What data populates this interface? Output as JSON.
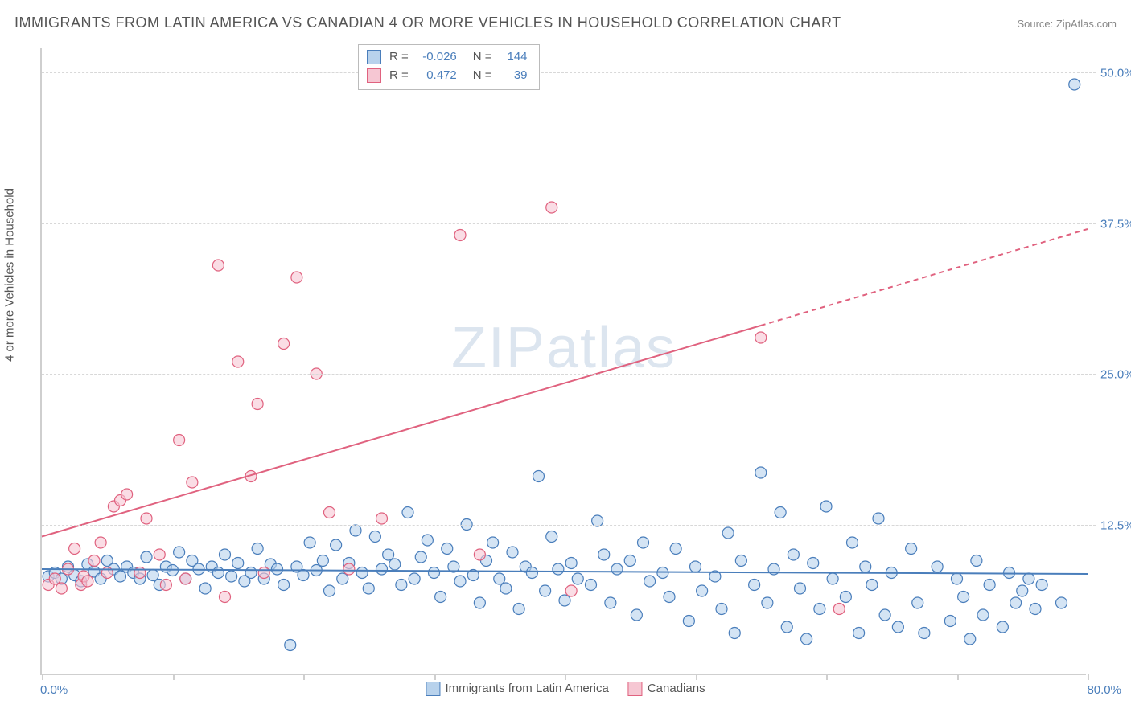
{
  "title": "IMMIGRANTS FROM LATIN AMERICA VS CANADIAN 4 OR MORE VEHICLES IN HOUSEHOLD CORRELATION CHART",
  "source": "Source: ZipAtlas.com",
  "watermark_a": "ZIP",
  "watermark_b": "atlas",
  "y_axis_label": "4 or more Vehicles in Household",
  "xlim": [
    0,
    80
  ],
  "ylim": [
    0,
    52
  ],
  "x_label_min": "0.0%",
  "x_label_max": "80.0%",
  "y_ticks": [
    {
      "v": 12.5,
      "label": "12.5%"
    },
    {
      "v": 25.0,
      "label": "25.0%"
    },
    {
      "v": 37.5,
      "label": "37.5%"
    },
    {
      "v": 50.0,
      "label": "50.0%"
    }
  ],
  "x_tick_positions": [
    0,
    10,
    20,
    30,
    40,
    50,
    60,
    70,
    80
  ],
  "grid_color": "#d8d8d8",
  "background_color": "#ffffff",
  "series": [
    {
      "name": "Immigrants from Latin America",
      "fill": "#b8d2ec",
      "stroke": "#4a7ebb",
      "marker_radius": 7,
      "line_width": 2,
      "R": "-0.026",
      "N": "144",
      "trend": {
        "x1": 0,
        "y1": 8.8,
        "x2": 80,
        "y2": 8.4
      },
      "points": [
        [
          0.5,
          8.2
        ],
        [
          1.0,
          8.5
        ],
        [
          1.5,
          8.0
        ],
        [
          2.0,
          9.0
        ],
        [
          2.5,
          8.3
        ],
        [
          3.0,
          7.8
        ],
        [
          3.5,
          9.2
        ],
        [
          4.0,
          8.6
        ],
        [
          4.5,
          8.0
        ],
        [
          5.0,
          9.5
        ],
        [
          5.5,
          8.8
        ],
        [
          6.0,
          8.2
        ],
        [
          6.5,
          9.0
        ],
        [
          7.0,
          8.5
        ],
        [
          7.5,
          8.0
        ],
        [
          8.0,
          9.8
        ],
        [
          8.5,
          8.3
        ],
        [
          9.0,
          7.5
        ],
        [
          9.5,
          9.0
        ],
        [
          10.0,
          8.7
        ],
        [
          10.5,
          10.2
        ],
        [
          11.0,
          8.0
        ],
        [
          11.5,
          9.5
        ],
        [
          12.0,
          8.8
        ],
        [
          12.5,
          7.2
        ],
        [
          13.0,
          9.0
        ],
        [
          13.5,
          8.5
        ],
        [
          14.0,
          10.0
        ],
        [
          14.5,
          8.2
        ],
        [
          15.0,
          9.3
        ],
        [
          15.5,
          7.8
        ],
        [
          16.0,
          8.5
        ],
        [
          16.5,
          10.5
        ],
        [
          17.0,
          8.0
        ],
        [
          17.5,
          9.2
        ],
        [
          18.0,
          8.8
        ],
        [
          18.5,
          7.5
        ],
        [
          19.0,
          2.5
        ],
        [
          19.5,
          9.0
        ],
        [
          20.0,
          8.3
        ],
        [
          20.5,
          11.0
        ],
        [
          21.0,
          8.7
        ],
        [
          21.5,
          9.5
        ],
        [
          22.0,
          7.0
        ],
        [
          22.5,
          10.8
        ],
        [
          23.0,
          8.0
        ],
        [
          23.5,
          9.3
        ],
        [
          24.0,
          12.0
        ],
        [
          24.5,
          8.5
        ],
        [
          25.0,
          7.2
        ],
        [
          25.5,
          11.5
        ],
        [
          26.0,
          8.8
        ],
        [
          26.5,
          10.0
        ],
        [
          27.0,
          9.2
        ],
        [
          27.5,
          7.5
        ],
        [
          28.0,
          13.5
        ],
        [
          28.5,
          8.0
        ],
        [
          29.0,
          9.8
        ],
        [
          29.5,
          11.2
        ],
        [
          30.0,
          8.5
        ],
        [
          30.5,
          6.5
        ],
        [
          31.0,
          10.5
        ],
        [
          31.5,
          9.0
        ],
        [
          32.0,
          7.8
        ],
        [
          32.5,
          12.5
        ],
        [
          33.0,
          8.3
        ],
        [
          33.5,
          6.0
        ],
        [
          34.0,
          9.5
        ],
        [
          34.5,
          11.0
        ],
        [
          35.0,
          8.0
        ],
        [
          35.5,
          7.2
        ],
        [
          36.0,
          10.2
        ],
        [
          36.5,
          5.5
        ],
        [
          37.0,
          9.0
        ],
        [
          37.5,
          8.5
        ],
        [
          38.0,
          16.5
        ],
        [
          38.5,
          7.0
        ],
        [
          39.0,
          11.5
        ],
        [
          39.5,
          8.8
        ],
        [
          40.0,
          6.2
        ],
        [
          40.5,
          9.3
        ],
        [
          41.0,
          8.0
        ],
        [
          42.0,
          7.5
        ],
        [
          42.5,
          12.8
        ],
        [
          43.0,
          10.0
        ],
        [
          43.5,
          6.0
        ],
        [
          44.0,
          8.8
        ],
        [
          45.0,
          9.5
        ],
        [
          45.5,
          5.0
        ],
        [
          46.0,
          11.0
        ],
        [
          46.5,
          7.8
        ],
        [
          47.5,
          8.5
        ],
        [
          48.0,
          6.5
        ],
        [
          48.5,
          10.5
        ],
        [
          49.5,
          4.5
        ],
        [
          50.0,
          9.0
        ],
        [
          50.5,
          7.0
        ],
        [
          51.5,
          8.2
        ],
        [
          52.0,
          5.5
        ],
        [
          52.5,
          11.8
        ],
        [
          53.0,
          3.5
        ],
        [
          53.5,
          9.5
        ],
        [
          54.5,
          7.5
        ],
        [
          55.0,
          16.8
        ],
        [
          55.5,
          6.0
        ],
        [
          56.0,
          8.8
        ],
        [
          56.5,
          13.5
        ],
        [
          57.0,
          4.0
        ],
        [
          57.5,
          10.0
        ],
        [
          58.0,
          7.2
        ],
        [
          58.5,
          3.0
        ],
        [
          59.0,
          9.3
        ],
        [
          59.5,
          5.5
        ],
        [
          60.0,
          14.0
        ],
        [
          60.5,
          8.0
        ],
        [
          61.5,
          6.5
        ],
        [
          62.0,
          11.0
        ],
        [
          62.5,
          3.5
        ],
        [
          63.0,
          9.0
        ],
        [
          63.5,
          7.5
        ],
        [
          64.0,
          13.0
        ],
        [
          64.5,
          5.0
        ],
        [
          65.0,
          8.5
        ],
        [
          65.5,
          4.0
        ],
        [
          66.5,
          10.5
        ],
        [
          67.0,
          6.0
        ],
        [
          67.5,
          3.5
        ],
        [
          68.5,
          9.0
        ],
        [
          69.5,
          4.5
        ],
        [
          70.0,
          8.0
        ],
        [
          70.5,
          6.5
        ],
        [
          71.0,
          3.0
        ],
        [
          71.5,
          9.5
        ],
        [
          72.0,
          5.0
        ],
        [
          72.5,
          7.5
        ],
        [
          73.5,
          4.0
        ],
        [
          74.0,
          8.5
        ],
        [
          74.5,
          6.0
        ],
        [
          75.0,
          7.0
        ],
        [
          75.5,
          8.0
        ],
        [
          76.0,
          5.5
        ],
        [
          76.5,
          7.5
        ],
        [
          78.0,
          6.0
        ],
        [
          79.0,
          49.0
        ]
      ]
    },
    {
      "name": "Canadians",
      "fill": "#f6c7d3",
      "stroke": "#e0627f",
      "marker_radius": 7,
      "line_width": 2,
      "R": "0.472",
      "N": "39",
      "trend": {
        "x1": 0,
        "y1": 11.5,
        "x2": 55,
        "y2": 29.0
      },
      "trend_ext": {
        "x1": 55,
        "y1": 29.0,
        "x2": 80,
        "y2": 37.0
      },
      "points": [
        [
          0.5,
          7.5
        ],
        [
          1.0,
          8.0
        ],
        [
          1.5,
          7.2
        ],
        [
          2.0,
          8.8
        ],
        [
          2.5,
          10.5
        ],
        [
          3.0,
          7.5
        ],
        [
          3.2,
          8.2
        ],
        [
          3.5,
          7.8
        ],
        [
          4.0,
          9.5
        ],
        [
          4.5,
          11.0
        ],
        [
          5.0,
          8.5
        ],
        [
          5.5,
          14.0
        ],
        [
          6.0,
          14.5
        ],
        [
          6.5,
          15.0
        ],
        [
          7.5,
          8.5
        ],
        [
          8.0,
          13.0
        ],
        [
          9.0,
          10.0
        ],
        [
          9.5,
          7.5
        ],
        [
          10.5,
          19.5
        ],
        [
          11.0,
          8.0
        ],
        [
          11.5,
          16.0
        ],
        [
          13.5,
          34.0
        ],
        [
          14.0,
          6.5
        ],
        [
          15.0,
          26.0
        ],
        [
          16.0,
          16.5
        ],
        [
          16.5,
          22.5
        ],
        [
          17.0,
          8.5
        ],
        [
          18.5,
          27.5
        ],
        [
          19.5,
          33.0
        ],
        [
          21.0,
          25.0
        ],
        [
          22.0,
          13.5
        ],
        [
          23.5,
          8.8
        ],
        [
          26.0,
          13.0
        ],
        [
          32.0,
          36.5
        ],
        [
          33.5,
          10.0
        ],
        [
          39.0,
          38.8
        ],
        [
          40.5,
          7.0
        ],
        [
          55.0,
          28.0
        ],
        [
          61.0,
          5.5
        ]
      ]
    }
  ],
  "legend_bottom": [
    {
      "label": "Immigrants from Latin America",
      "fill": "#b8d2ec",
      "stroke": "#4a7ebb"
    },
    {
      "label": "Canadians",
      "fill": "#f6c7d3",
      "stroke": "#e0627f"
    }
  ]
}
